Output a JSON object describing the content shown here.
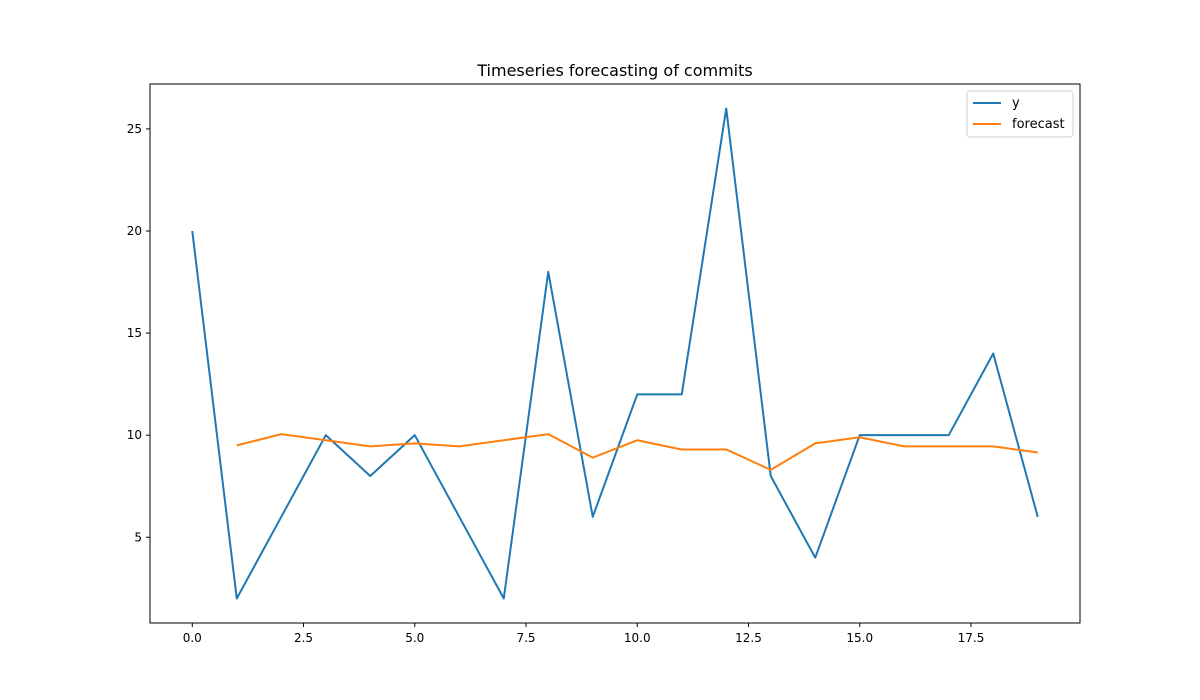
{
  "chart_data": {
    "type": "line",
    "title": "Timeseries forecasting of commits",
    "xlabel": "",
    "ylabel": "",
    "xlim": [
      -0.95,
      19.95
    ],
    "ylim": [
      0.8,
      27.2
    ],
    "x_ticks": [
      0.0,
      2.5,
      5.0,
      7.5,
      10.0,
      12.5,
      15.0,
      17.5
    ],
    "x_tick_labels": [
      "0.0",
      "2.5",
      "5.0",
      "7.5",
      "10.0",
      "12.5",
      "15.0",
      "17.5"
    ],
    "y_ticks": [
      5,
      10,
      15,
      20,
      25
    ],
    "y_tick_labels": [
      "5",
      "10",
      "15",
      "20",
      "25"
    ],
    "grid": false,
    "legend_position": "top-right",
    "series": [
      {
        "name": "y",
        "color": "#1f77b4",
        "x": [
          0,
          1,
          2,
          3,
          4,
          5,
          6,
          7,
          8,
          9,
          10,
          11,
          12,
          13,
          14,
          15,
          16,
          17,
          18,
          19
        ],
        "values": [
          20,
          2,
          6,
          10,
          8,
          10,
          6,
          2,
          18,
          6,
          12,
          12,
          26,
          8,
          4,
          10,
          10,
          10,
          14,
          6
        ]
      },
      {
        "name": "forecast",
        "color": "#ff7f0e",
        "x": [
          1,
          2,
          3,
          4,
          5,
          6,
          7,
          8,
          9,
          10,
          11,
          12,
          13,
          14,
          15,
          16,
          17,
          18,
          19
        ],
        "values": [
          9.5,
          10.05,
          9.75,
          9.45,
          9.6,
          9.45,
          9.75,
          10.05,
          8.9,
          9.75,
          9.3,
          9.3,
          8.3,
          9.6,
          9.9,
          9.45,
          9.45,
          9.45,
          9.15
        ]
      }
    ]
  }
}
